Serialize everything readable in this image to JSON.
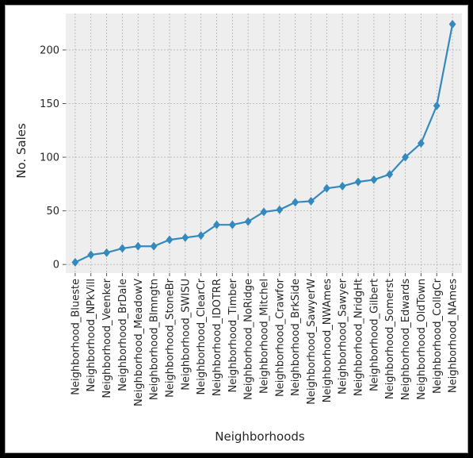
{
  "chart_data": {
    "type": "line",
    "title": "",
    "xlabel": "Neighborhoods",
    "ylabel": "No. Sales",
    "ylim": [
      -8,
      234
    ],
    "yticks": [
      0,
      50,
      100,
      150,
      200
    ],
    "grid": true,
    "categories": [
      "Neighborhood_Blueste",
      "Neighborhood_NPkVill",
      "Neighborhood_Veenker",
      "Neighborhood_BrDale",
      "Neighborhood_MeadowV",
      "Neighborhood_Blmngtn",
      "Neighborhood_StoneBr",
      "Neighborhood_SWISU",
      "Neighborhood_ClearCr",
      "Neighborhood_IDOTRR",
      "Neighborhood_Timber",
      "Neighborhood_NoRidge",
      "Neighborhood_Mitchel",
      "Neighborhood_Crawfor",
      "Neighborhood_BrkSide",
      "Neighborhood_SawyerW",
      "Neighborhood_NWAmes",
      "Neighborhood_Sawyer",
      "Neighborhood_NridgHt",
      "Neighborhood_Gilbert",
      "Neighborhood_Somerst",
      "Neighborhood_Edwards",
      "Neighborhood_OldTown",
      "Neighborhood_CollgCr",
      "Neighborhood_NAmes"
    ],
    "series": [
      {
        "values": [
          2,
          9,
          11,
          15,
          17,
          17,
          23,
          25,
          27,
          37,
          37,
          40,
          49,
          51,
          58,
          59,
          71,
          73,
          77,
          79,
          84,
          100,
          113,
          148,
          224
        ],
        "color": "#348abd",
        "marker": "diamond"
      }
    ]
  }
}
